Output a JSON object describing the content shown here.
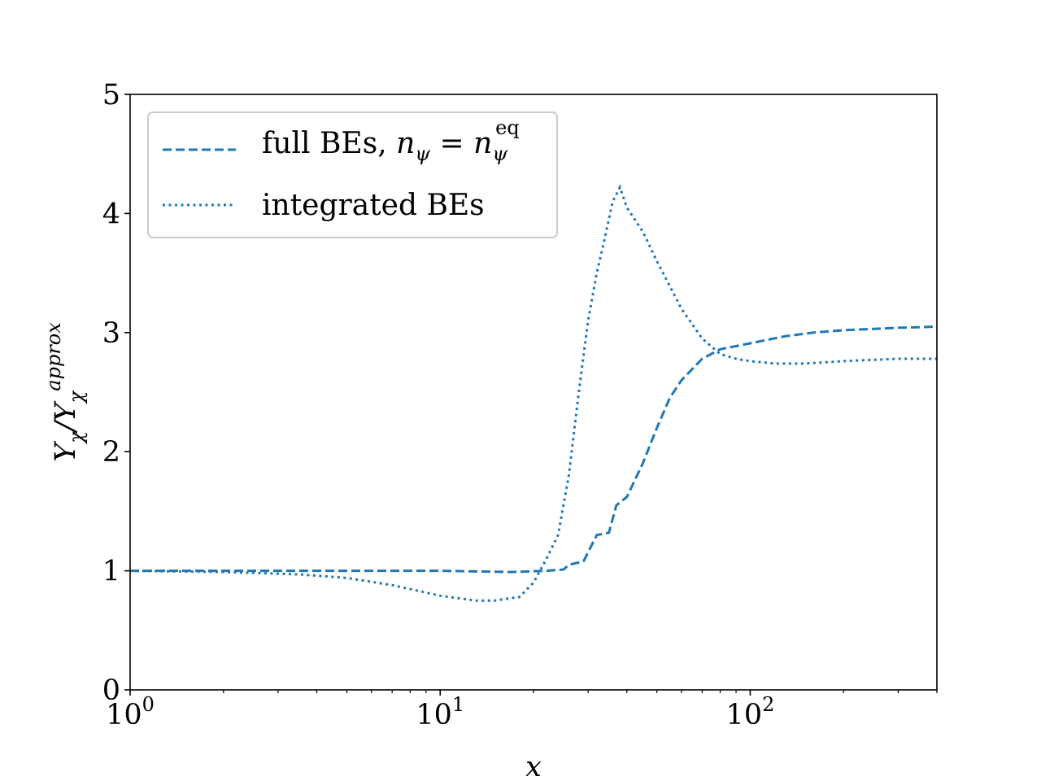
{
  "chart_data": {
    "type": "line",
    "xscale": "log",
    "xlim": [
      1,
      400
    ],
    "ylim": [
      0,
      5
    ],
    "xlabel": "x",
    "ylabel": "Yχ/Yχ^approx",
    "xticks": [
      {
        "base": "10",
        "exp": "0",
        "value": 1
      },
      {
        "base": "10",
        "exp": "1",
        "value": 10
      },
      {
        "base": "10",
        "exp": "2",
        "value": 100
      }
    ],
    "yticks": [
      "0",
      "1",
      "2",
      "3",
      "4",
      "5"
    ],
    "grid": false,
    "legend_position": "upper-left",
    "series": [
      {
        "name": "full BEs, nψ = nψ^eq",
        "style": "dashed",
        "color": "#1f77b4",
        "points": [
          [
            1,
            1.0
          ],
          [
            3,
            1.0
          ],
          [
            10,
            1.0
          ],
          [
            17,
            0.99
          ],
          [
            22,
            1.0
          ],
          [
            25,
            1.01
          ],
          [
            26,
            1.05
          ],
          [
            29,
            1.08
          ],
          [
            32,
            1.3
          ],
          [
            35,
            1.32
          ],
          [
            37,
            1.55
          ],
          [
            40,
            1.62
          ],
          [
            45,
            1.9
          ],
          [
            50,
            2.2
          ],
          [
            55,
            2.45
          ],
          [
            60,
            2.6
          ],
          [
            70,
            2.78
          ],
          [
            80,
            2.86
          ],
          [
            100,
            2.91
          ],
          [
            130,
            2.97
          ],
          [
            160,
            3.0
          ],
          [
            200,
            3.02
          ],
          [
            300,
            3.04
          ],
          [
            400,
            3.05
          ]
        ]
      },
      {
        "name": "integrated BEs",
        "style": "dotted",
        "color": "#1f77b4",
        "points": [
          [
            1,
            1.0
          ],
          [
            2,
            0.99
          ],
          [
            3.5,
            0.97
          ],
          [
            5,
            0.94
          ],
          [
            7,
            0.88
          ],
          [
            10,
            0.79
          ],
          [
            13,
            0.75
          ],
          [
            15,
            0.75
          ],
          [
            18,
            0.78
          ],
          [
            20,
            0.9
          ],
          [
            22,
            1.1
          ],
          [
            24,
            1.3
          ],
          [
            26,
            1.8
          ],
          [
            28,
            2.5
          ],
          [
            30,
            3.1
          ],
          [
            32,
            3.5
          ],
          [
            34,
            3.8
          ],
          [
            36,
            4.1
          ],
          [
            38,
            4.22
          ],
          [
            40,
            4.05
          ],
          [
            45,
            3.85
          ],
          [
            50,
            3.6
          ],
          [
            60,
            3.2
          ],
          [
            70,
            2.95
          ],
          [
            80,
            2.82
          ],
          [
            90,
            2.78
          ],
          [
            100,
            2.76
          ],
          [
            120,
            2.74
          ],
          [
            150,
            2.74
          ],
          [
            200,
            2.76
          ],
          [
            300,
            2.78
          ],
          [
            400,
            2.78
          ]
        ]
      }
    ]
  }
}
